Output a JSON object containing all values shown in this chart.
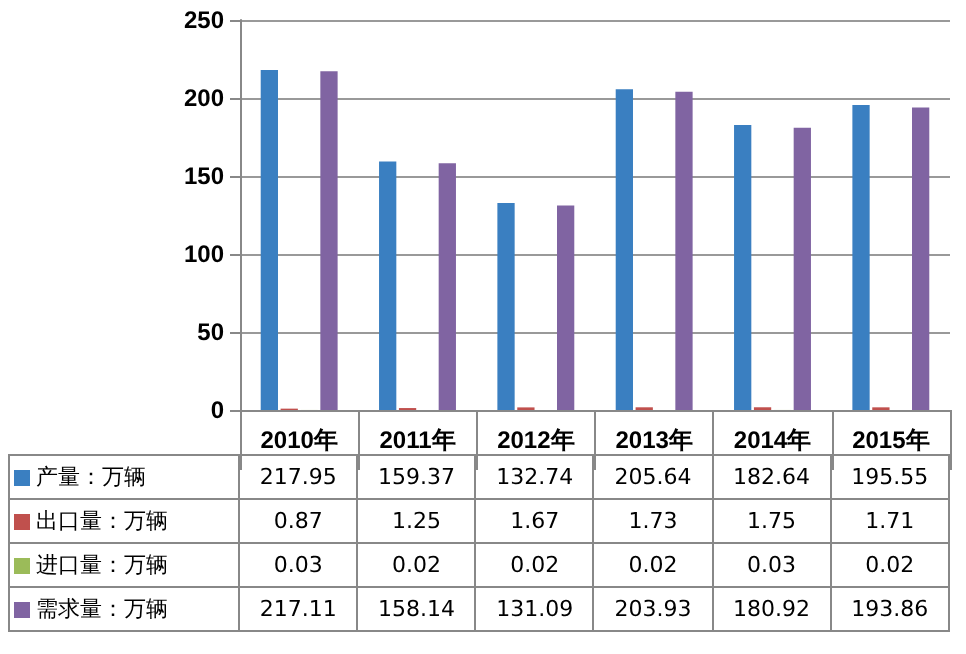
{
  "chart_data": {
    "type": "bar",
    "categories": [
      "2010年",
      "2011年",
      "2012年",
      "2013年",
      "2014年",
      "2015年"
    ],
    "series": [
      {
        "name": "产量：万辆",
        "color": "#3a7fc1",
        "values": [
          217.95,
          159.37,
          132.74,
          205.64,
          182.64,
          195.55
        ]
      },
      {
        "name": "出口量：万辆",
        "color": "#c0504d",
        "values": [
          0.87,
          1.25,
          1.67,
          1.73,
          1.75,
          1.71
        ]
      },
      {
        "name": "进口量：万辆",
        "color": "#9bbb59",
        "values": [
          0.03,
          0.02,
          0.02,
          0.02,
          0.03,
          0.02
        ]
      },
      {
        "name": "需求量：万辆",
        "color": "#8064a2",
        "values": [
          217.11,
          158.14,
          131.09,
          203.93,
          180.92,
          193.86
        ]
      }
    ],
    "ylim": [
      0,
      250
    ],
    "yticks": [
      0,
      50,
      100,
      150,
      200,
      250
    ],
    "grid": "y",
    "legend": "bottom left",
    "data_labels": true
  }
}
